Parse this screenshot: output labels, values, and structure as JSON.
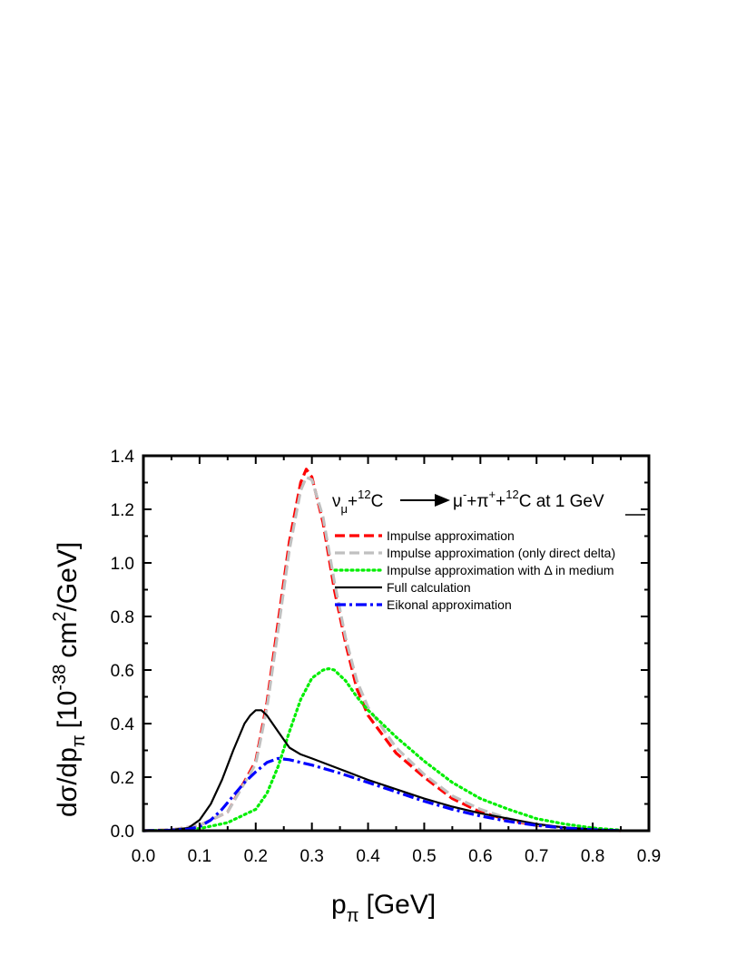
{
  "chart_data": {
    "type": "line",
    "title": "",
    "xlabel": "p",
    "xlabel_sub": "π",
    "xlabel_unit": "[GeV]",
    "ylabel_parts": {
      "a": "dσ/dp",
      "a_sub": "π",
      "b": "[10",
      "b_sup": "-38",
      "c": "cm",
      "c_sup": "2",
      "d": "/GeV]"
    },
    "xlim": [
      0.0,
      0.9
    ],
    "ylim": [
      0.0,
      1.4
    ],
    "xticks": [
      "0.0",
      "0.1",
      "0.2",
      "0.3",
      "0.4",
      "0.5",
      "0.6",
      "0.7",
      "0.8",
      "0.9"
    ],
    "yticks": [
      "0.0",
      "0.2",
      "0.4",
      "0.6",
      "0.8",
      "1.0",
      "1.2",
      "1.4"
    ],
    "grid": false,
    "legend_position": "upper-right",
    "annotation": {
      "nu": "ν",
      "nu_sub": "μ",
      "plus1": "+",
      "c_sup1": "12",
      "c1": "C",
      "mu": "μ",
      "mu_sup": "-",
      "plus2": "+π",
      "pi_sup": "+",
      "plus3": "+",
      "c_sup2": "12",
      "c2": "C at 1 GeV"
    },
    "series": [
      {
        "name": "Impulse approximation",
        "color": "#ff0000",
        "style": "dash",
        "x": [
          0.0,
          0.05,
          0.1,
          0.15,
          0.2,
          0.22,
          0.24,
          0.26,
          0.28,
          0.29,
          0.3,
          0.32,
          0.34,
          0.36,
          0.38,
          0.4,
          0.45,
          0.5,
          0.55,
          0.6,
          0.65,
          0.7,
          0.75,
          0.8,
          0.85
        ],
        "y": [
          0.0,
          0.003,
          0.02,
          0.07,
          0.26,
          0.48,
          0.78,
          1.08,
          1.3,
          1.35,
          1.32,
          1.15,
          0.9,
          0.7,
          0.53,
          0.43,
          0.29,
          0.2,
          0.12,
          0.07,
          0.04,
          0.02,
          0.01,
          0.004,
          0.0
        ]
      },
      {
        "name": "Impulse approximation (only direct delta)",
        "color": "#c0c0c0",
        "style": "dash",
        "x": [
          0.0,
          0.05,
          0.1,
          0.15,
          0.2,
          0.22,
          0.24,
          0.26,
          0.28,
          0.29,
          0.3,
          0.32,
          0.34,
          0.36,
          0.38,
          0.4,
          0.45,
          0.5,
          0.55,
          0.6,
          0.65,
          0.7,
          0.75,
          0.8,
          0.85
        ],
        "y": [
          0.0,
          0.003,
          0.02,
          0.07,
          0.25,
          0.46,
          0.75,
          1.05,
          1.27,
          1.32,
          1.31,
          1.17,
          0.93,
          0.72,
          0.56,
          0.46,
          0.31,
          0.21,
          0.13,
          0.08,
          0.045,
          0.022,
          0.01,
          0.004,
          0.0
        ]
      },
      {
        "name": "Impulse approximation with Δ in medium",
        "color": "#00ee00",
        "style": "dot",
        "x": [
          0.0,
          0.05,
          0.1,
          0.15,
          0.2,
          0.22,
          0.24,
          0.26,
          0.28,
          0.3,
          0.32,
          0.33,
          0.34,
          0.36,
          0.38,
          0.4,
          0.45,
          0.5,
          0.55,
          0.6,
          0.65,
          0.7,
          0.75,
          0.8,
          0.85
        ],
        "y": [
          0.0,
          0.002,
          0.008,
          0.03,
          0.08,
          0.14,
          0.24,
          0.37,
          0.49,
          0.57,
          0.6,
          0.605,
          0.6,
          0.56,
          0.5,
          0.45,
          0.35,
          0.26,
          0.18,
          0.12,
          0.08,
          0.045,
          0.025,
          0.01,
          0.002
        ]
      },
      {
        "name": "Full calculation",
        "color": "#000000",
        "style": "solid",
        "x": [
          0.0,
          0.05,
          0.08,
          0.1,
          0.12,
          0.14,
          0.16,
          0.18,
          0.19,
          0.2,
          0.21,
          0.22,
          0.24,
          0.26,
          0.28,
          0.3,
          0.35,
          0.4,
          0.45,
          0.5,
          0.55,
          0.6,
          0.65,
          0.7,
          0.75,
          0.8,
          0.85
        ],
        "y": [
          0.0,
          0.003,
          0.01,
          0.04,
          0.1,
          0.19,
          0.3,
          0.4,
          0.43,
          0.45,
          0.45,
          0.43,
          0.37,
          0.31,
          0.285,
          0.27,
          0.23,
          0.19,
          0.155,
          0.12,
          0.09,
          0.065,
          0.045,
          0.025,
          0.012,
          0.005,
          0.0
        ]
      },
      {
        "name": "Eikonal approximation",
        "color": "#0000ff",
        "style": "dashdot",
        "x": [
          0.0,
          0.05,
          0.08,
          0.1,
          0.12,
          0.14,
          0.16,
          0.18,
          0.2,
          0.22,
          0.24,
          0.26,
          0.28,
          0.3,
          0.35,
          0.4,
          0.45,
          0.5,
          0.55,
          0.6,
          0.65,
          0.7,
          0.75,
          0.8,
          0.85
        ],
        "y": [
          0.0,
          0.002,
          0.006,
          0.015,
          0.04,
          0.08,
          0.13,
          0.18,
          0.22,
          0.255,
          0.27,
          0.265,
          0.255,
          0.245,
          0.215,
          0.18,
          0.145,
          0.11,
          0.08,
          0.055,
          0.035,
          0.02,
          0.01,
          0.004,
          0.0
        ]
      }
    ]
  }
}
